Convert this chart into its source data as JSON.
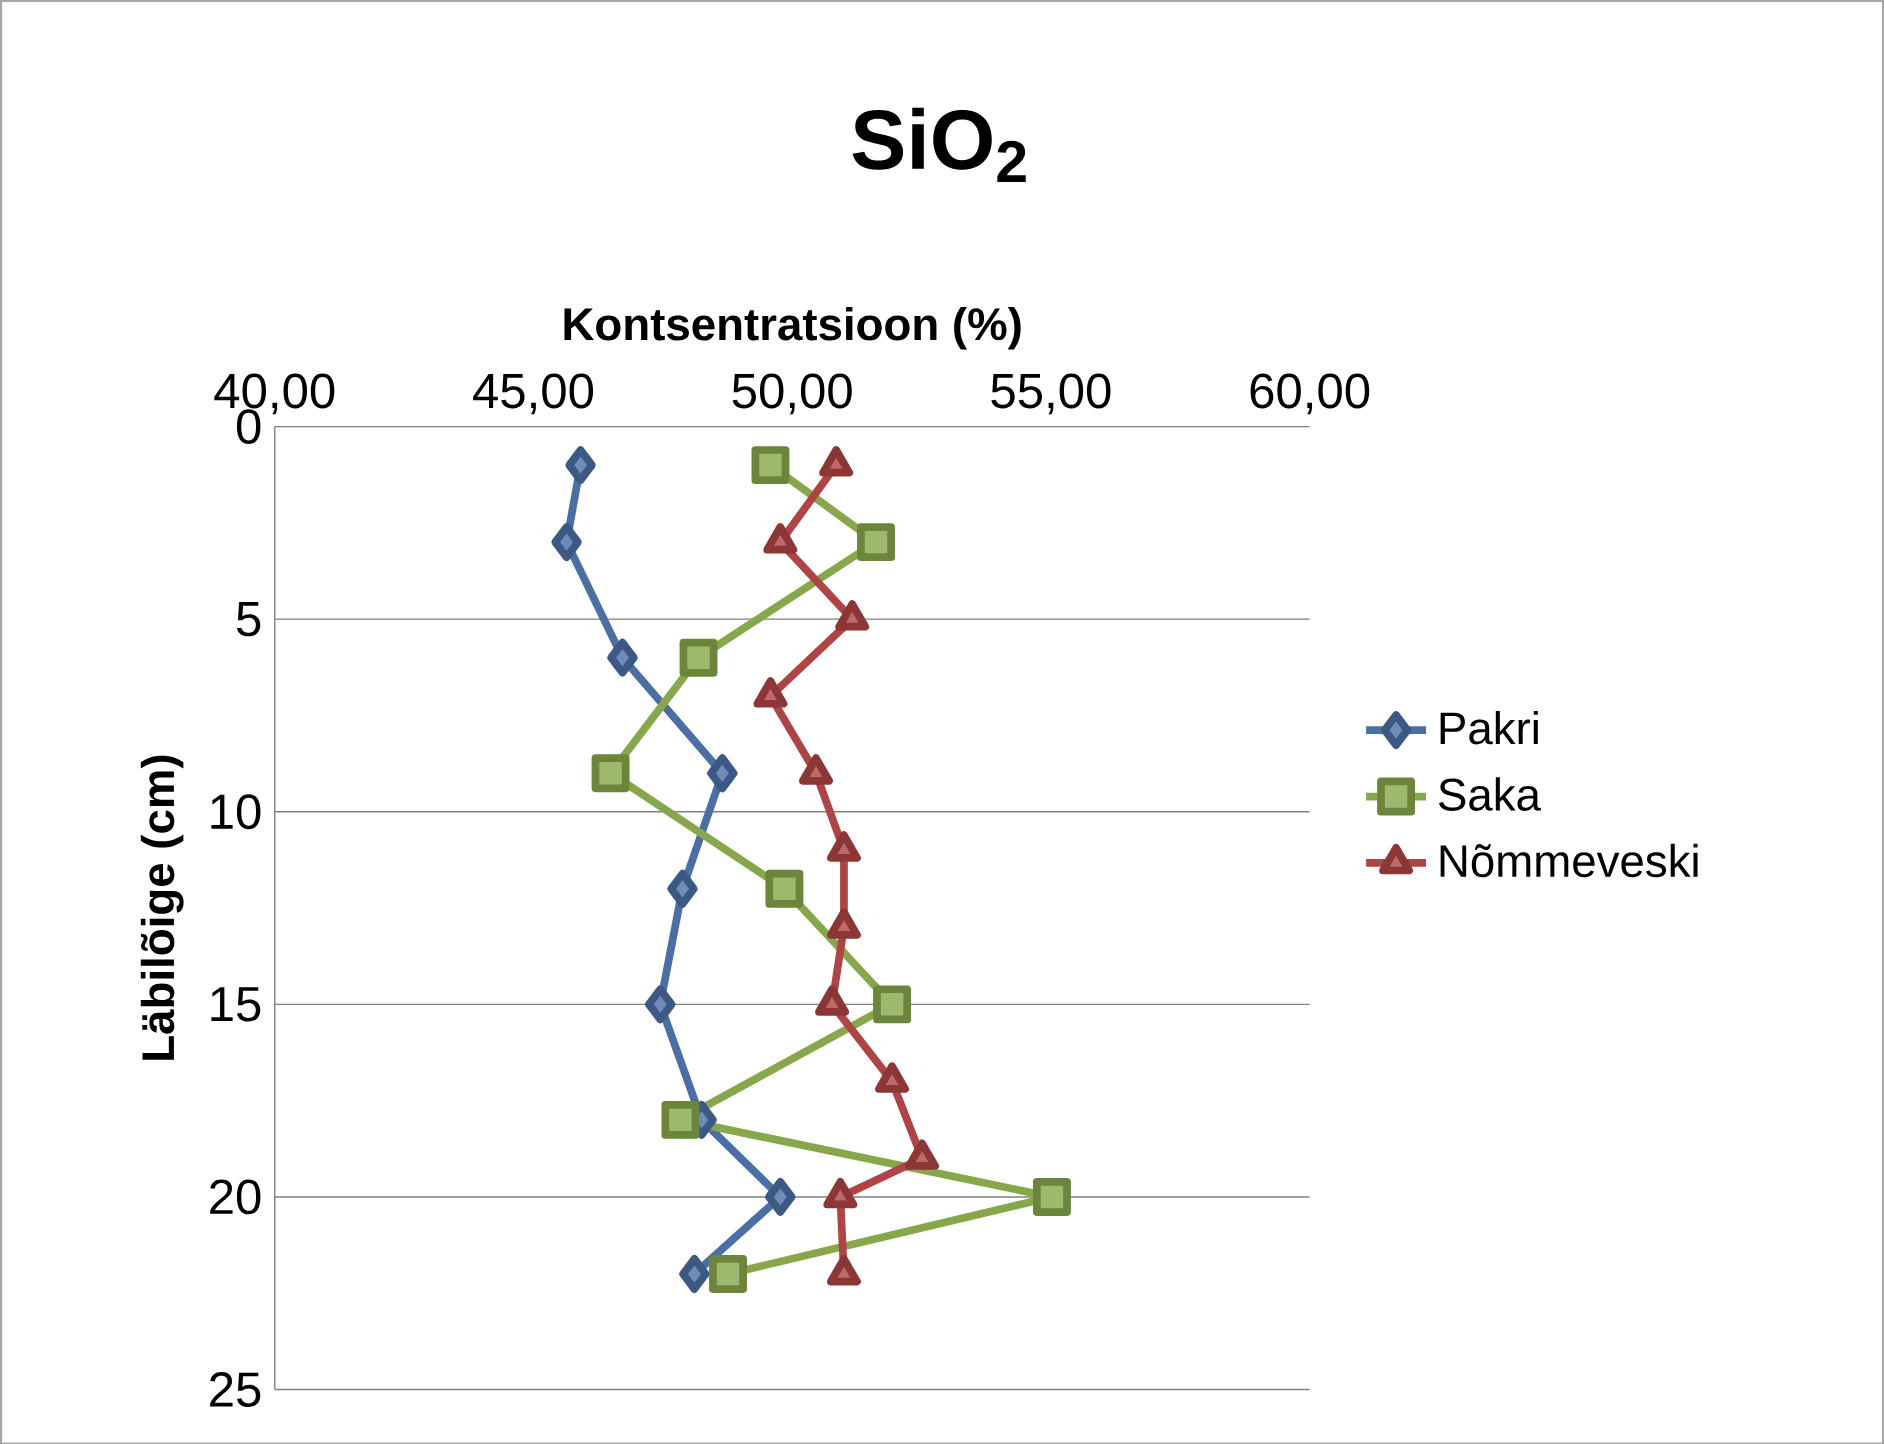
{
  "chart_data": {
    "type": "line",
    "title": "SiO$_{2}$",
    "xlabel": "Kontsentratsioon (%)",
    "ylabel": "Läbilõige (cm)",
    "xlim": [
      40,
      60
    ],
    "xticks": [
      {
        "value": 40,
        "label": "40,00"
      },
      {
        "value": 45,
        "label": "45,00"
      },
      {
        "value": 50,
        "label": "50,00"
      },
      {
        "value": 55,
        "label": "55,00"
      },
      {
        "value": 60,
        "label": "60,00"
      }
    ],
    "ylim": [
      25,
      0
    ],
    "yticks": [
      0,
      5,
      10,
      15,
      20,
      25
    ],
    "grid": "y",
    "legend": "right",
    "series": [
      {
        "name": "Pakri",
        "color": "#4a6fa5",
        "marker": "diamond",
        "x": [
          45.91,
          45.64,
          46.72,
          48.65,
          47.88,
          47.45,
          48.25,
          49.77,
          48.11
        ],
        "values": [
          1,
          3,
          6,
          9,
          12,
          15,
          18,
          20,
          22
        ]
      },
      {
        "name": "Saka",
        "color": "#86a84a",
        "marker": "square",
        "x": [
          49.58,
          51.62,
          48.19,
          46.49,
          49.85,
          51.93,
          47.84,
          55.02,
          48.76
        ],
        "values": [
          1,
          3,
          6,
          9,
          12,
          15,
          18,
          20,
          22
        ]
      },
      {
        "name": "Nõmmeveski",
        "color": "#b04444",
        "marker": "triangle",
        "x": [
          50.85,
          49.77,
          51.16,
          49.58,
          50.46,
          51.0,
          51.0,
          50.77,
          51.93,
          52.51,
          50.93,
          51.0
        ],
        "values": [
          1,
          3,
          5,
          7,
          9,
          11,
          13,
          15,
          17,
          19,
          20,
          22
        ]
      }
    ]
  }
}
